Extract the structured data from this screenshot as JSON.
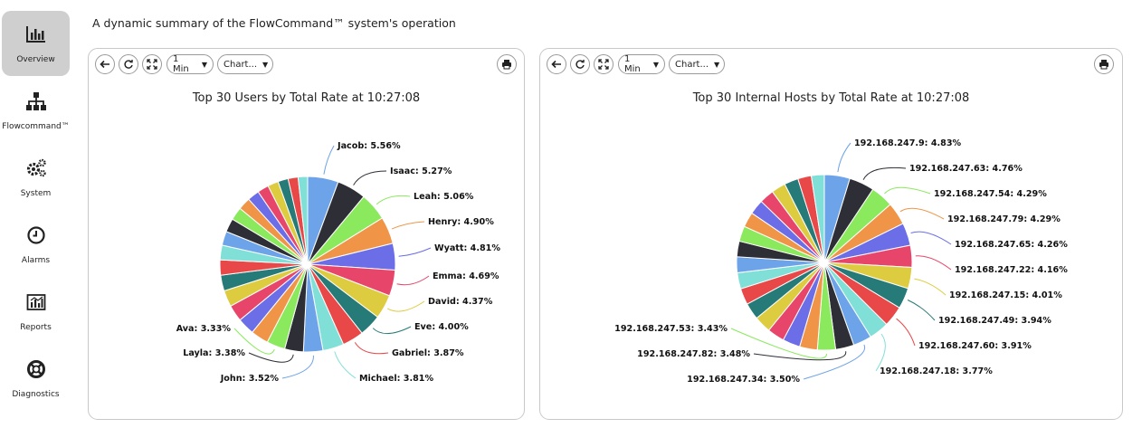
{
  "sidebar": {
    "items": [
      {
        "label": "Overview",
        "icon": "bar-chart-icon",
        "active": true
      },
      {
        "label": "Flowcommand™",
        "icon": "network-tree-icon",
        "active": false
      },
      {
        "label": "System",
        "icon": "gears-icon",
        "active": false
      },
      {
        "label": "Alarms",
        "icon": "clock-icon",
        "active": false
      },
      {
        "label": "Reports",
        "icon": "report-chart-icon",
        "active": false
      },
      {
        "label": "Diagnostics",
        "icon": "lifebuoy-icon",
        "active": false
      }
    ]
  },
  "header": {
    "subtitle": "A dynamic summary of the FlowCommand™ system's operation"
  },
  "panels": [
    {
      "toolbar": {
        "interval": "1 Min",
        "chart_type": "Chart..."
      }
    },
    {
      "toolbar": {
        "interval": "1 Min",
        "chart_type": "Chart..."
      }
    }
  ],
  "palette": [
    "#6da3e8",
    "#2e2e36",
    "#8be95e",
    "#f09548",
    "#6b6ee6",
    "#e8456b",
    "#ddcc40",
    "#267a78",
    "#e84848",
    "#80e0d8"
  ],
  "chart_data": [
    {
      "type": "pie",
      "title": "Top 30 Users by Total Rate at 10:27:08",
      "labelled_slices": 12,
      "slices": [
        {
          "label": "Jacob",
          "value": 5.56
        },
        {
          "label": "Isaac",
          "value": 5.27
        },
        {
          "label": "Leah",
          "value": 5.06
        },
        {
          "label": "Henry",
          "value": 4.9
        },
        {
          "label": "Wyatt",
          "value": 4.81
        },
        {
          "label": "Emma",
          "value": 4.69
        },
        {
          "label": "David",
          "value": 4.37
        },
        {
          "label": "Eve",
          "value": 4.0
        },
        {
          "label": "Gabriel",
          "value": 3.87
        },
        {
          "label": "Michael",
          "value": 3.81
        },
        {
          "label": "John",
          "value": 3.52
        },
        {
          "label": "Layla",
          "value": 3.38
        },
        {
          "label": "Ava",
          "value": 3.33
        }
      ],
      "other_slices": [
        3.2,
        3.1,
        3.0,
        2.95,
        2.85,
        2.75,
        2.65,
        2.55,
        2.45,
        2.35,
        2.25,
        2.15,
        2.05,
        1.95,
        1.85,
        1.8,
        1.72
      ]
    },
    {
      "type": "pie",
      "title": "Top 30 Internal Hosts by Total Rate at 10:27:08",
      "labelled_slices": 12,
      "slices": [
        {
          "label": "192.168.247.9",
          "value": 4.83
        },
        {
          "label": "192.168.247.63",
          "value": 4.76
        },
        {
          "label": "192.168.247.54",
          "value": 4.29
        },
        {
          "label": "192.168.247.79",
          "value": 4.29
        },
        {
          "label": "192.168.247.65",
          "value": 4.26
        },
        {
          "label": "192.168.247.22",
          "value": 4.16
        },
        {
          "label": "192.168.247.15",
          "value": 4.01
        },
        {
          "label": "192.168.247.49",
          "value": 3.94
        },
        {
          "label": "192.168.247.60",
          "value": 3.91
        },
        {
          "label": "192.168.247.18",
          "value": 3.77
        },
        {
          "label": "192.168.247.34",
          "value": 3.5
        },
        {
          "label": "192.168.247.82",
          "value": 3.48
        },
        {
          "label": "192.168.247.53",
          "value": 3.43
        }
      ],
      "other_slices": [
        3.35,
        3.3,
        3.25,
        3.2,
        3.15,
        3.1,
        3.05,
        3.0,
        2.95,
        2.9,
        2.85,
        2.8,
        2.75,
        2.7,
        2.65,
        2.55,
        2.45
      ]
    }
  ]
}
